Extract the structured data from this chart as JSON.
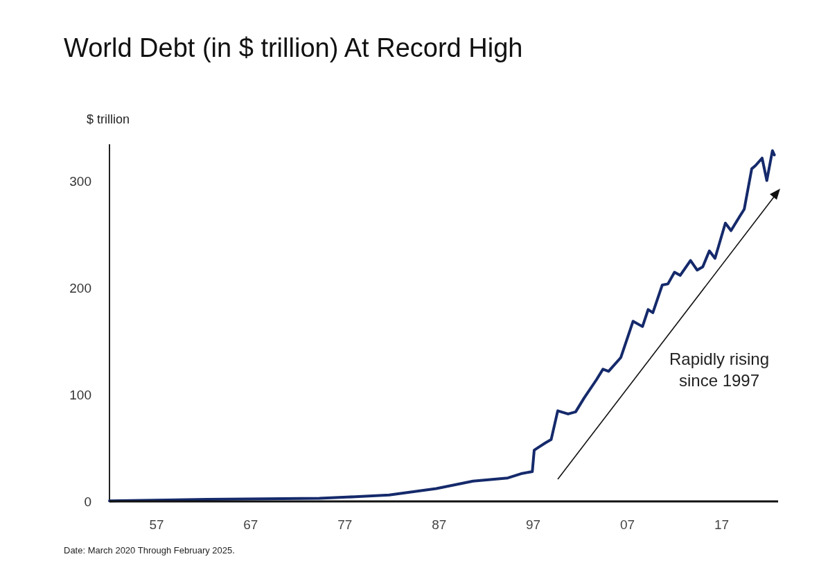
{
  "chart_data": {
    "type": "line",
    "title": "World Debt (in $ trillion) At Record High",
    "ylabel": "$ trillion",
    "xlim": [
      1952,
      2023
    ],
    "xticks": [
      {
        "value": 1957,
        "label": "57"
      },
      {
        "value": 1967,
        "label": "67"
      },
      {
        "value": 1977,
        "label": "77"
      },
      {
        "value": 1987,
        "label": "87"
      },
      {
        "value": 1997,
        "label": "97"
      },
      {
        "value": 2007,
        "label": "07"
      },
      {
        "value": 2017,
        "label": "17"
      }
    ],
    "ylim": [
      0,
      335
    ],
    "yticks": [
      0,
      100,
      200,
      300
    ],
    "grid": false,
    "series": [
      {
        "color": "#152a6b",
        "x": [
          1952,
          1962.4,
          1974.3,
          1977.2,
          1981.7,
          1986.7,
          1990.6,
          1994.3,
          1995.7,
          1996.9,
          1997.1,
          1997.6,
          1998.3,
          1998.9,
          1999.6,
          2000.7,
          2001.5,
          2002.4,
          2003.7,
          2004.4,
          2005.0,
          2006.3,
          2007.6,
          2008.6,
          2009.2,
          2009.7,
          2010.7,
          2011.3,
          2012.0,
          2012.6,
          2013.7,
          2014.4,
          2015.0,
          2015.7,
          2016.3,
          2017.4,
          2018.0,
          2018.9,
          2019.4,
          2020.2,
          2020.6,
          2021.3,
          2021.8,
          2022.4,
          2022.6
        ],
        "values": [
          0.5,
          2,
          3,
          4,
          6,
          12,
          19,
          22,
          26,
          28,
          48,
          51,
          55,
          58,
          85,
          82,
          84,
          97,
          114,
          124,
          122,
          135,
          169,
          164,
          180,
          177,
          203,
          204,
          215,
          212,
          226,
          217,
          220,
          235,
          228,
          261,
          254,
          267,
          274,
          312,
          315,
          322,
          301,
          329,
          325
        ]
      }
    ],
    "annotations": [
      "Rapidly rising since 1997",
      "Date: March 2020 Through February 2025."
    ]
  }
}
